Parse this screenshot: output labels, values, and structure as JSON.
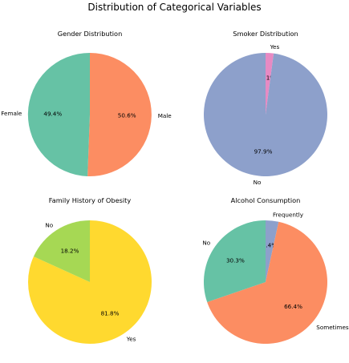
{
  "figure_title": "Distribution of Categorical Variables",
  "chart_data": [
    {
      "type": "pie",
      "title": "Gender Distribution",
      "categories": [
        "Male",
        "Female"
      ],
      "values": [
        50.6,
        49.4
      ],
      "value_labels": [
        "50.6%",
        "49.4%"
      ],
      "colors": [
        "#fc8d62",
        "#66c2a5"
      ],
      "start_angle_deg": 90,
      "direction": "clockwise"
    },
    {
      "type": "pie",
      "title": "Smoker Distribution",
      "categories": [
        "Yes",
        "No"
      ],
      "values": [
        2.1,
        97.9
      ],
      "value_labels": [
        "2.1%",
        "97.9%"
      ],
      "colors": [
        "#e78ac3",
        "#8da0cb"
      ],
      "start_angle_deg": 90,
      "direction": "clockwise"
    },
    {
      "type": "pie",
      "title": "Family History of Obesity",
      "categories": [
        "Yes",
        "No"
      ],
      "values": [
        81.8,
        18.2
      ],
      "value_labels": [
        "81.8%",
        "18.2%"
      ],
      "colors": [
        "#ffd92f",
        "#a6d854"
      ],
      "start_angle_deg": 90,
      "direction": "clockwise"
    },
    {
      "type": "pie",
      "title": "Alcohol Consumption",
      "categories": [
        "Frequently",
        "Sometimes",
        "No"
      ],
      "values": [
        3.4,
        66.4,
        30.3
      ],
      "value_labels": [
        "3.4%",
        "66.4%",
        "30.3%"
      ],
      "colors": [
        "#8da0cb",
        "#fc8d62",
        "#66c2a5"
      ],
      "start_angle_deg": 90,
      "direction": "clockwise"
    }
  ]
}
